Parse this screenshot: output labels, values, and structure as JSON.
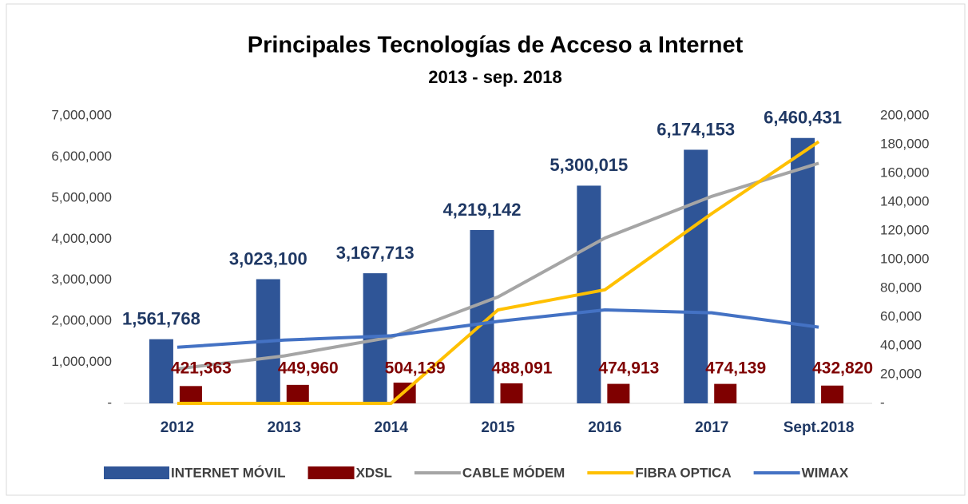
{
  "chart_data": {
    "type": "bar-line",
    "title": "Principales Tecnologías de Acceso a Internet",
    "subtitle": "2013 - sep. 2018",
    "categories": [
      "2012",
      "2013",
      "2014",
      "2015",
      "2016",
      "2017",
      "Sept.2018"
    ],
    "ylim": [
      0,
      7000000
    ],
    "yticks": [
      {
        "value": 0,
        "label": "-"
      },
      {
        "value": 1000000,
        "label": "1,000,000"
      },
      {
        "value": 2000000,
        "label": "2,000,000"
      },
      {
        "value": 3000000,
        "label": "3,000,000"
      },
      {
        "value": 4000000,
        "label": "4,000,000"
      },
      {
        "value": 5000000,
        "label": "5,000,000"
      },
      {
        "value": 6000000,
        "label": "6,000,000"
      },
      {
        "value": 7000000,
        "label": "7,000,000"
      }
    ],
    "y2lim": [
      0,
      200000
    ],
    "y2ticks": [
      {
        "value": 0,
        "label": "-"
      },
      {
        "value": 20000,
        "label": "20,000"
      },
      {
        "value": 40000,
        "label": "40,000"
      },
      {
        "value": 60000,
        "label": "60,000"
      },
      {
        "value": 80000,
        "label": "80,000"
      },
      {
        "value": 100000,
        "label": "100,000"
      },
      {
        "value": 120000,
        "label": "120,000"
      },
      {
        "value": 140000,
        "label": "140,000"
      },
      {
        "value": 160000,
        "label": "160,000"
      },
      {
        "value": 180000,
        "label": "180,000"
      },
      {
        "value": 200000,
        "label": "200,000"
      }
    ],
    "legend": "bottom",
    "series": [
      {
        "name": "INTERNET MÓVIL",
        "kind": "bar",
        "color": "#2f5597",
        "label_color": "#1f3864",
        "values": [
          1561768,
          3023100,
          3167713,
          4219142,
          5300015,
          6174153,
          6460431
        ],
        "value_labels": [
          "1,561,768",
          "3,023,100",
          "3,167,713",
          "4,219,142",
          "5,300,015",
          "6,174,153",
          "6,460,431"
        ]
      },
      {
        "name": "XDSL",
        "kind": "bar",
        "color": "#7f0000",
        "label_color": "#7f0000",
        "values": [
          421363,
          449960,
          504139,
          488091,
          474913,
          474139,
          432820
        ],
        "value_labels": [
          "421,363",
          "449,960",
          "504,139",
          "488,091",
          "474,913",
          "474,139",
          "432,820"
        ]
      },
      {
        "name": "CABLE MÓDEM",
        "kind": "line",
        "axis": "y2",
        "color": "#a5a5a5",
        "values": [
          24000,
          33000,
          46000,
          74000,
          115000,
          144000,
          167000
        ]
      },
      {
        "name": "FIBRA OPTICA",
        "kind": "line",
        "axis": "y2",
        "color": "#ffc000",
        "values": [
          0,
          0,
          0,
          65000,
          79000,
          132000,
          182000
        ]
      },
      {
        "name": "WIMAX",
        "kind": "line",
        "axis": "y2",
        "color": "#4472c4",
        "values": [
          39000,
          44000,
          47000,
          57000,
          65000,
          63000,
          53000
        ]
      }
    ]
  }
}
